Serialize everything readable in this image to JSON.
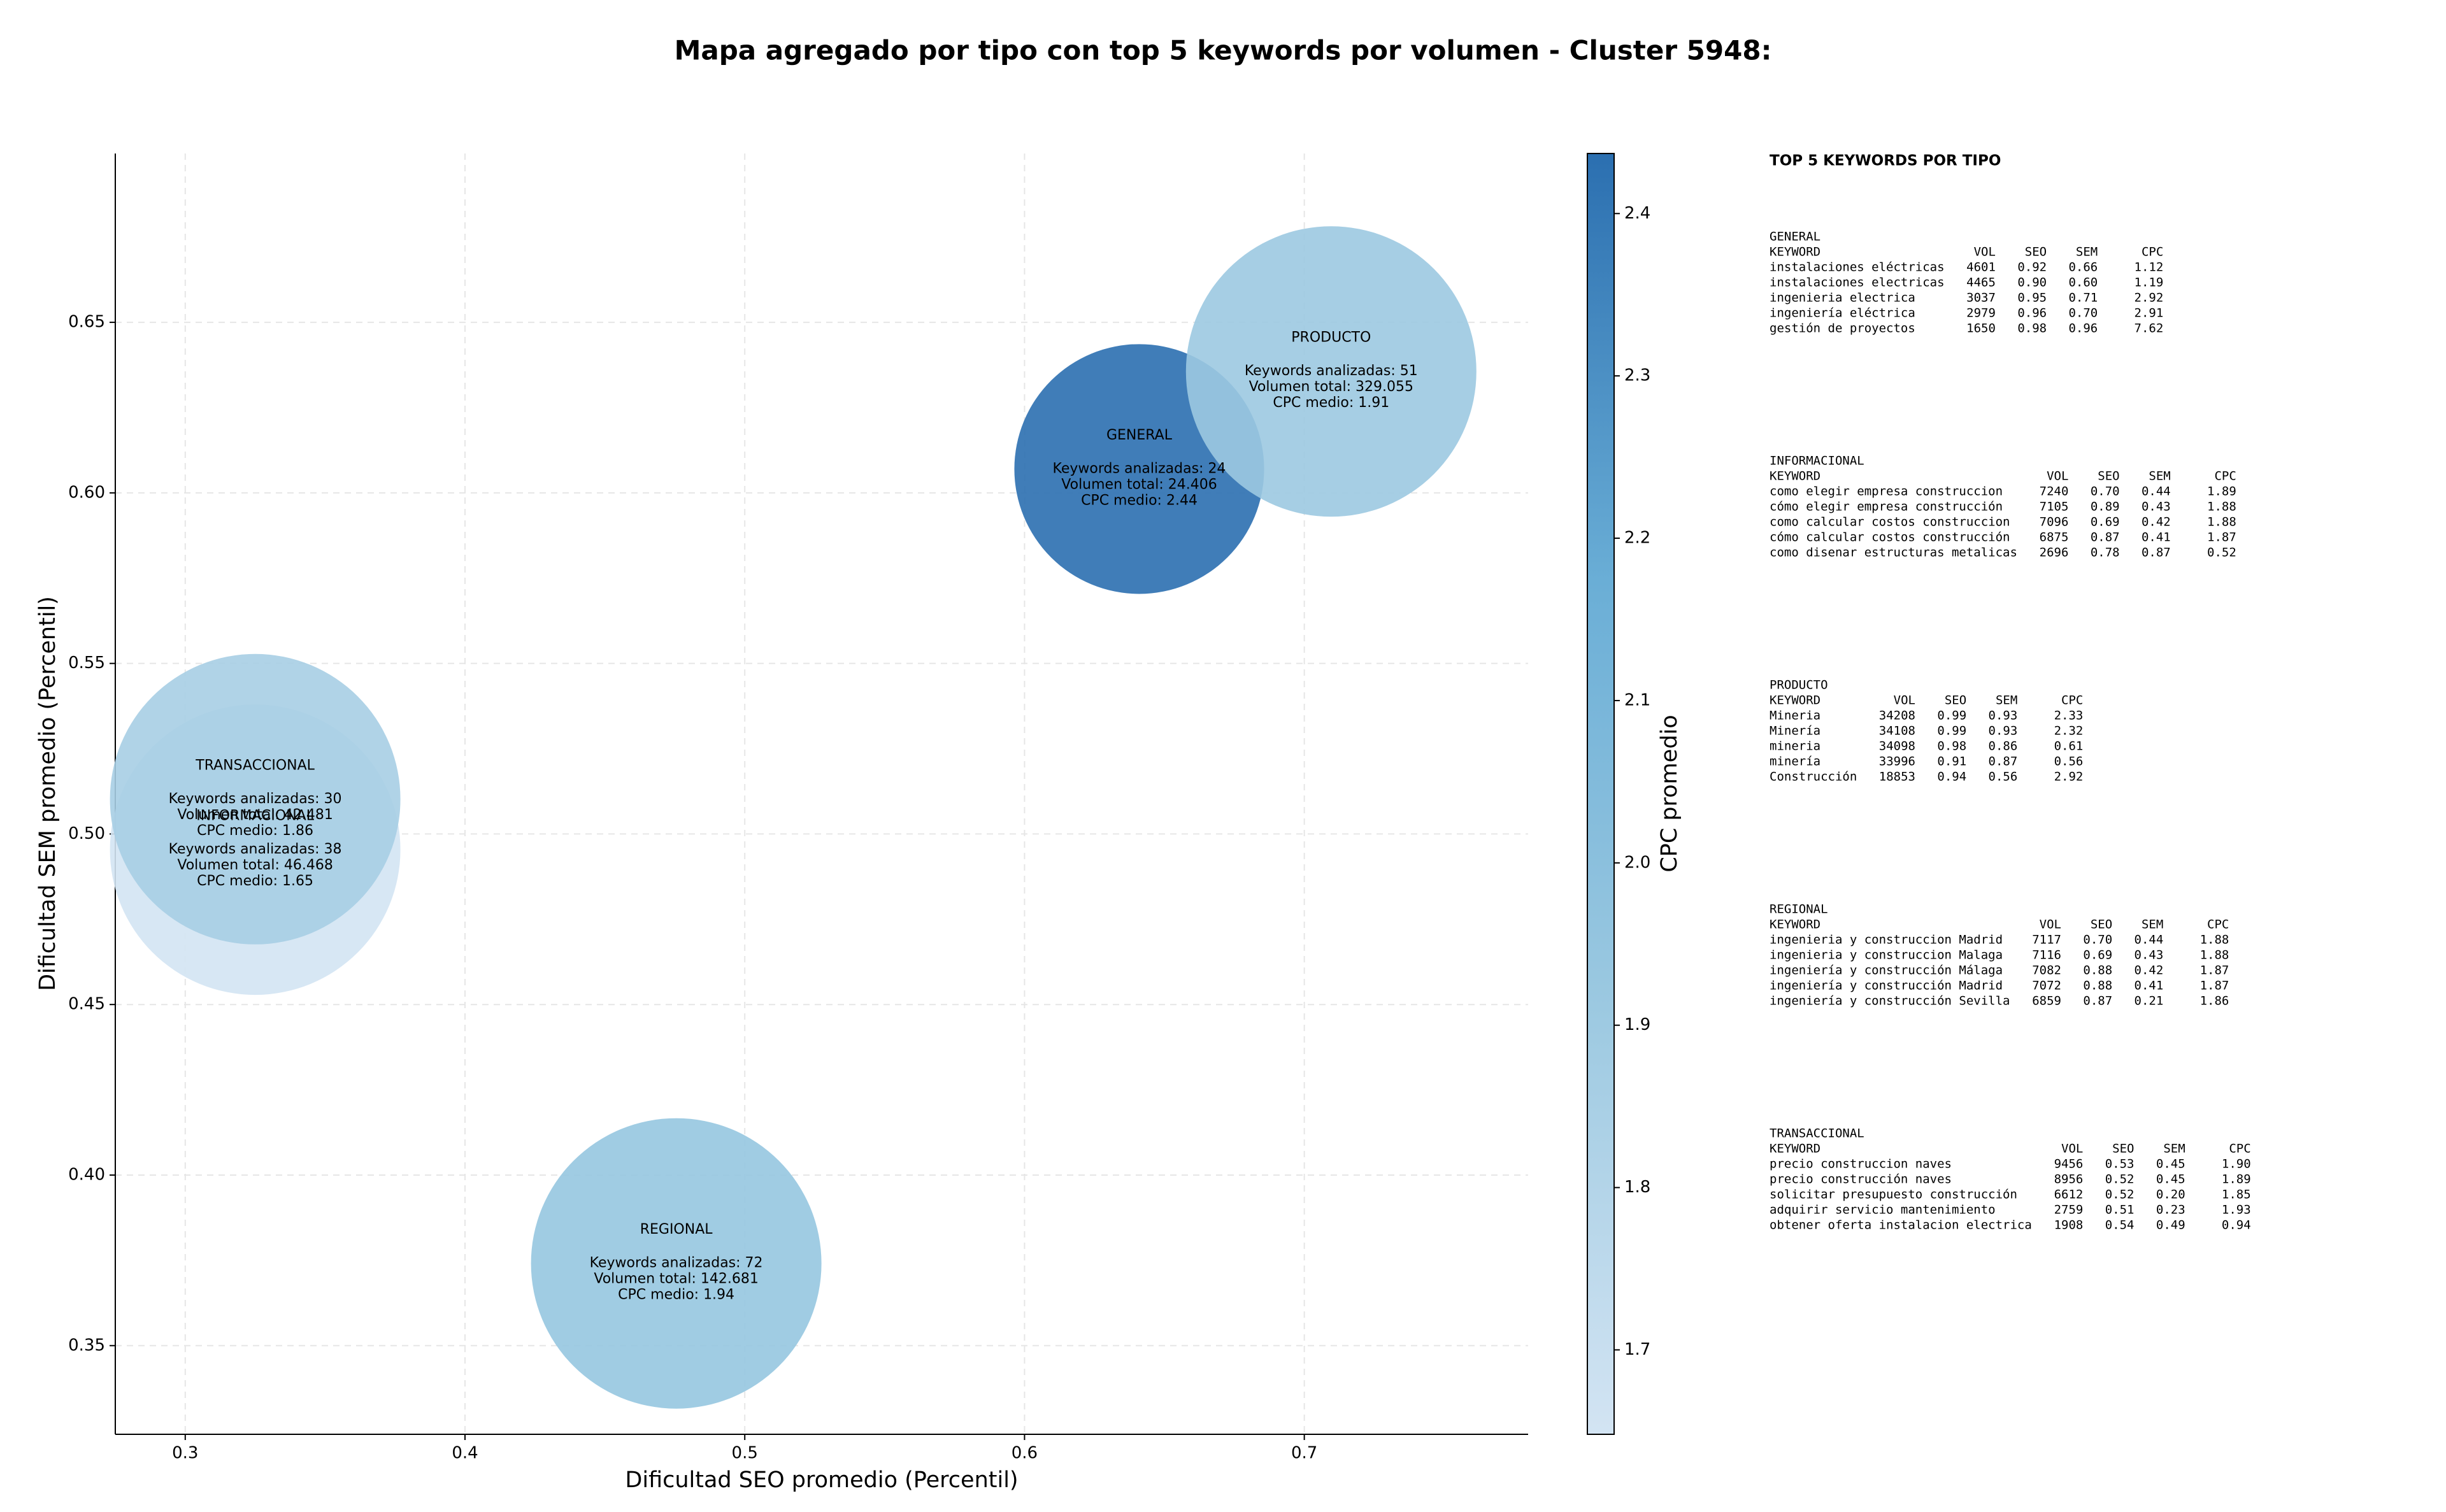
{
  "chart_data": {
    "type": "bubble",
    "title": "Mapa agregado por tipo con top 5 keywords por volumen - Cluster 5948:",
    "xlabel": "Dificultad SEO promedio (Percentil)",
    "ylabel": "Dificultad SEM promedio (Percentil)",
    "colorbar_label": "CPC promedio",
    "categories": [
      "GENERAL",
      "INFORMACIONAL",
      "PRODUCTO",
      "REGIONAL",
      "TRANSACCIONAL"
    ],
    "x": [
      0.641,
      0.325,
      0.7096,
      0.4755,
      0.325
    ],
    "values": [
      0.607,
      0.4954,
      0.6356,
      0.3741,
      0.5102
    ],
    "volumes": [
      24406,
      46468,
      329055,
      142681,
      42481
    ],
    "cpc": [
      2.44,
      1.65,
      1.91,
      1.94,
      1.86
    ],
    "labels": [
      [
        "Keywords analizadas: 24",
        "Volumen total: 24.406",
        "CPC medio: 2.44"
      ],
      [
        "Keywords analizadas: 38",
        "Volumen total: 46.468",
        "CPC medio: 1.65"
      ],
      [
        "Keywords analizadas: 51",
        "Volumen total: 329.055",
        "CPC medio: 1.91"
      ],
      [
        "Keywords analizadas: 72",
        "Volumen total: 142.681",
        "CPC medio: 1.94"
      ],
      [
        "Keywords analizadas: 30",
        "Volumen total: 42.481",
        "CPC medio: 1.86"
      ]
    ],
    "colormap": [
      "#d3e4f3",
      "#9cc9e1",
      "#6aaed6",
      "#2b6fb0"
    ],
    "clim": [
      1.648,
      2.437
    ],
    "cticks": [
      1.7,
      1.8,
      1.9,
      {
        "value": 2.0,
        "label": "2.0"
      },
      2.1,
      2.2,
      2.3,
      2.4
    ],
    "xlim": [
      0.275,
      0.78
    ],
    "xticks": [
      0.3,
      0.4,
      0.5,
      0.6,
      0.7
    ],
    "ylim": [
      0.324,
      0.6995
    ],
    "yticks": [
      0.35,
      {
        "value": 0.4,
        "label": "0.40"
      },
      0.45,
      {
        "value": 0.5,
        "label": "0.50"
      },
      0.55,
      {
        "value": 0.6,
        "label": "0.60"
      },
      0.65
    ],
    "grid": true
  },
  "keyword_panel": {
    "title": "TOP 5 KEYWORDS POR TIPO",
    "header": [
      "KEYWORD",
      "VOL",
      "SEO",
      "SEM",
      "CPC"
    ],
    "groups": [
      {
        "name": "GENERAL",
        "rows": [
          [
            "instalaciones eléctricas",
            "4601",
            "0.92",
            "0.66",
            "1.12"
          ],
          [
            "instalaciones electricas",
            "4465",
            "0.90",
            "0.60",
            "1.19"
          ],
          [
            "ingenieria electrica",
            "3037",
            "0.95",
            "0.71",
            "2.92"
          ],
          [
            "ingeniería eléctrica",
            "2979",
            "0.96",
            "0.70",
            "2.91"
          ],
          [
            "gestión de proyectos",
            "1650",
            "0.98",
            "0.96",
            "7.62"
          ]
        ]
      },
      {
        "name": "INFORMACIONAL",
        "rows": [
          [
            "como elegir empresa construccion",
            "7240",
            "0.70",
            "0.44",
            "1.89"
          ],
          [
            "cómo elegir empresa construcción",
            "7105",
            "0.89",
            "0.43",
            "1.88"
          ],
          [
            "como calcular costos construccion",
            "7096",
            "0.69",
            "0.42",
            "1.88"
          ],
          [
            "cómo calcular costos construcción",
            "6875",
            "0.87",
            "0.41",
            "1.87"
          ],
          [
            "como disenar estructuras metalicas",
            "2696",
            "0.78",
            "0.87",
            "0.52"
          ]
        ]
      },
      {
        "name": "PRODUCTO",
        "rows": [
          [
            "Mineria",
            "34208",
            "0.99",
            "0.93",
            "2.33"
          ],
          [
            "Minería",
            "34108",
            "0.99",
            "0.93",
            "2.32"
          ],
          [
            "mineria",
            "34098",
            "0.98",
            "0.86",
            "0.61"
          ],
          [
            "minería",
            "33996",
            "0.91",
            "0.87",
            "0.56"
          ],
          [
            "Construcción",
            "18853",
            "0.94",
            "0.56",
            "2.92"
          ]
        ]
      },
      {
        "name": "REGIONAL",
        "rows": [
          [
            "ingenieria y construccion Madrid",
            "7117",
            "0.70",
            "0.44",
            "1.88"
          ],
          [
            "ingenieria y construccion Malaga",
            "7116",
            "0.69",
            "0.43",
            "1.88"
          ],
          [
            "ingeniería y construcción Málaga",
            "7082",
            "0.88",
            "0.42",
            "1.87"
          ],
          [
            "ingeniería y construcción Madrid",
            "7072",
            "0.88",
            "0.41",
            "1.87"
          ],
          [
            "ingeniería y construcción Sevilla",
            "6859",
            "0.87",
            "0.21",
            "1.86"
          ]
        ]
      },
      {
        "name": "TRANSACCIONAL",
        "rows": [
          [
            "precio construccion naves",
            "9456",
            "0.53",
            "0.45",
            "1.90"
          ],
          [
            "precio construcción naves",
            "8956",
            "0.52",
            "0.45",
            "1.89"
          ],
          [
            "solicitar presupuesto construcción",
            "6612",
            "0.52",
            "0.20",
            "1.85"
          ],
          [
            "adquirir servicio mantenimiento",
            "2759",
            "0.51",
            "0.23",
            "1.93"
          ],
          [
            "obtener oferta instalacion electrica",
            "1908",
            "0.54",
            "0.49",
            "0.94"
          ]
        ]
      }
    ]
  }
}
